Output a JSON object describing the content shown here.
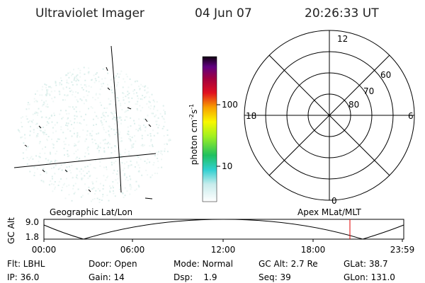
{
  "header": {
    "title": "Ultraviolet Imager",
    "date": "04 Jun 07",
    "time": "20:26:33 UT"
  },
  "colorbar": {
    "label": {
      "base": "photon cm",
      "exp1": "-2",
      "mid": "s",
      "exp2": "-1"
    },
    "ticks": [
      "100",
      "10"
    ]
  },
  "polar": {
    "hour_labels": [
      "12",
      "18",
      "6",
      "0"
    ],
    "lat_labels": [
      "60",
      "70",
      "80"
    ]
  },
  "timeline": {
    "left_title": "Geographic Lat/Lon",
    "right_title": "Apex MLat/MLT",
    "axis_label": "GC Alt",
    "y_labels": [
      "9.0",
      "1.8"
    ],
    "x_labels": [
      "00:00",
      "06:00",
      "12:00",
      "18:00",
      "23:59"
    ]
  },
  "info": {
    "rows": [
      [
        "Flt: LBHL",
        "Door: Open",
        "Mode: Normal",
        "GC Alt: 2.7 Re",
        "GLat: 38.7"
      ],
      [
        "IP: 36.0",
        "Gain: 14",
        "Dsp:    1.9",
        "Seq: 39",
        "GLon: 131.0"
      ]
    ]
  }
}
